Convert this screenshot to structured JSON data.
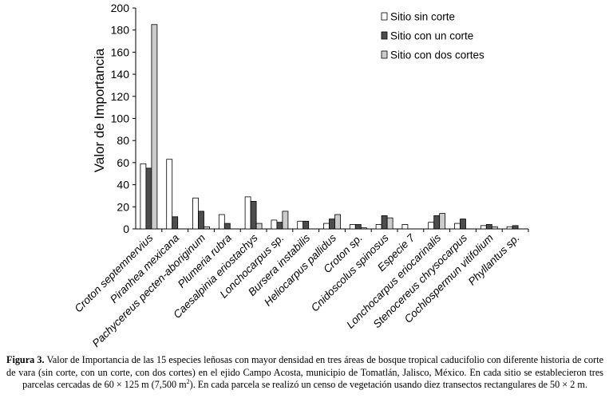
{
  "chart_data": {
    "type": "bar",
    "ylabel": "Valor de Importancia",
    "ylim": [
      0,
      200
    ],
    "yticks": [
      0,
      20,
      40,
      60,
      80,
      100,
      120,
      140,
      160,
      180,
      200
    ],
    "grid": false,
    "legend_position": "top-right",
    "categories": [
      "Croton septemnervius",
      "Piranhea mexicana",
      "Pachycereus pecten-aboriginum",
      "Plumeria rubra",
      "Caesalpinia eriostachys",
      "Lonchocarpus sp.",
      "Bursera instabilis",
      "Heliocarpus pallidus",
      "Croton sp.",
      "Cnidoscolus spinosus",
      "Especie 7",
      "Lonchocarpus eriocarinalis",
      "Stenocereus chrysocarpus",
      "Cochlospermun vitifolium",
      "Phyllantus sp."
    ],
    "series": [
      {
        "name": "Sitio sin corte",
        "color": "#ffffff",
        "values": [
          59,
          63,
          28,
          13,
          29,
          8,
          7,
          5,
          4,
          4,
          4,
          6,
          5,
          3,
          2
        ]
      },
      {
        "name": "Sitio con un corte",
        "color": "#4d4d4d",
        "values": [
          55,
          11,
          16,
          5,
          25,
          6,
          7,
          9,
          4,
          12,
          0,
          12,
          9,
          4,
          3
        ]
      },
      {
        "name": "Sitio con dos cortes",
        "color": "#cccccc",
        "values": [
          185,
          0,
          2,
          0,
          5,
          16,
          0,
          13,
          1,
          10,
          0,
          14,
          0,
          2,
          0
        ]
      }
    ]
  },
  "caption": {
    "label": "Figura 3.",
    "text_1": " Valor de Importancia de las 15 especies leñosas con mayor densidad en tres áreas de bosque tropical caducifolio con diferente historia de corte de vara (sin corte, con un corte, con dos cortes) en el ejido Campo Acosta, municipio de Tomatlán, Jalisco, México. En cada sitio se establecieron tres parcelas cercadas de 60 × 125 m (7,500 m",
    "sup": "2",
    "text_2": "). En cada parcela se realizó un censo de vegetación usando diez transectos rectangulares de 50 × 2 m."
  }
}
